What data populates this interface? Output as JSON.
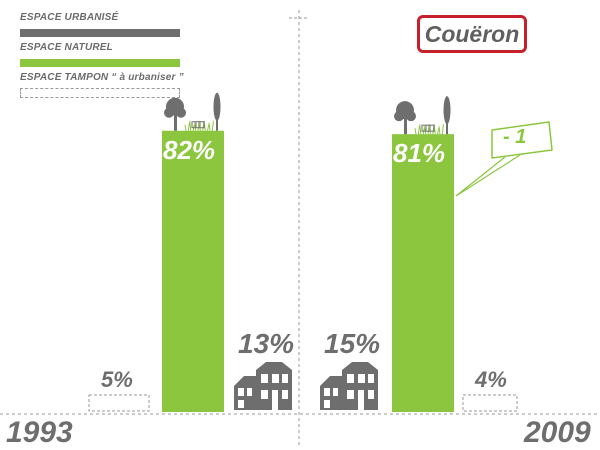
{
  "legend": {
    "items": [
      {
        "label": "ESPACE URBANISÉ",
        "style": "solid",
        "color": "#6e6e6e"
      },
      {
        "label": "ESPACE NATUREL",
        "style": "solid",
        "color": "#8cc63f"
      },
      {
        "label": "ESPACE TAMPON “ à urbaniser ”",
        "style": "dashed",
        "color": "#9a9a9a"
      }
    ]
  },
  "title": "Couëron",
  "colors": {
    "urbanise": "#6e6e6e",
    "naturel": "#8cc63f",
    "tampon": "#9a9a9a",
    "title_border": "#c8202a"
  },
  "chart_data": {
    "type": "bar",
    "categories": [
      "1993",
      "2009"
    ],
    "series": [
      {
        "name": "ESPACE NATUREL",
        "values": [
          82,
          81
        ],
        "labels": [
          "82%",
          "81%"
        ]
      },
      {
        "name": "ESPACE URBANISÉ",
        "values": [
          13,
          15
        ],
        "labels": [
          "13%",
          "15%"
        ]
      },
      {
        "name": "ESPACE TAMPON “ à urbaniser ”",
        "values": [
          5,
          4
        ],
        "labels": [
          "5%",
          "4%"
        ]
      }
    ],
    "annotation": "- 1",
    "icons": [
      "tree-icon",
      "house-icon"
    ]
  },
  "years": {
    "left": "1993",
    "right": "2009"
  }
}
